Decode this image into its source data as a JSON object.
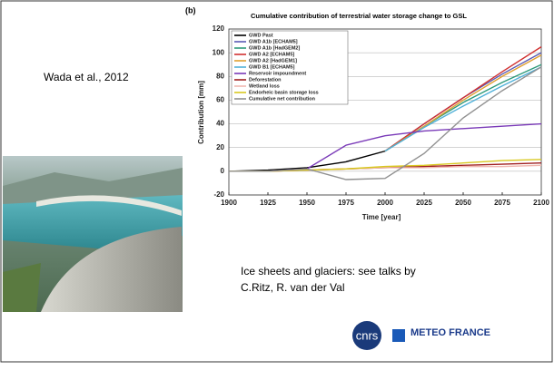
{
  "slide": {
    "citation": "Wada et al., 2012",
    "note_lines": [
      "Ice sheets and glaciers: see talks by",
      "C.Ritz, R. van der Val"
    ],
    "logos": [
      "cnrs",
      "METEO FRANCE"
    ]
  },
  "chart_data": {
    "type": "line",
    "panel_label": "(b)",
    "title": "Cumulative contribution of terrestrial water storage change to GSL",
    "x_label": "Time [year]",
    "y_label": "Contribution [mm]",
    "x": [
      1900,
      1925,
      1950,
      1975,
      2000,
      2025,
      2050,
      2075,
      2100
    ],
    "xlim": [
      1900,
      2100
    ],
    "xticks": [
      1900,
      1925,
      1950,
      1975,
      2000,
      2025,
      2050,
      2075,
      2100
    ],
    "ylim": [
      -20,
      120
    ],
    "yticks": [
      -20,
      0,
      20,
      40,
      60,
      80,
      100,
      120
    ],
    "grid": true,
    "legend": "top-left",
    "series": [
      {
        "name": "GWD Past",
        "color": "#000000",
        "values": [
          0,
          1,
          3,
          8,
          17,
          null,
          null,
          null,
          null
        ]
      },
      {
        "name": "GWD A1b [ECHAM5]",
        "color": "#5a5ab4",
        "values": [
          null,
          null,
          null,
          null,
          17,
          40,
          62,
          82,
          100
        ]
      },
      {
        "name": "GWD A1b [HadGEM2]",
        "color": "#2e9a7a",
        "values": [
          null,
          null,
          null,
          null,
          17,
          38,
          58,
          75,
          90
        ]
      },
      {
        "name": "GWD A2 [ECHAM5]",
        "color": "#d03030",
        "values": [
          null,
          null,
          null,
          null,
          17,
          40,
          62,
          84,
          105
        ]
      },
      {
        "name": "GWD A2 [HadGEM1]",
        "color": "#e0a030",
        "values": [
          null,
          null,
          null,
          null,
          17,
          38,
          60,
          80,
          98
        ]
      },
      {
        "name": "GWD B1 [ECHAM5]",
        "color": "#50b0d8",
        "values": [
          null,
          null,
          null,
          null,
          17,
          37,
          55,
          72,
          88
        ]
      },
      {
        "name": "Reservoir impoundment",
        "color": "#7a3ab8",
        "values": [
          0,
          0,
          2,
          22,
          30,
          34,
          36,
          38,
          40
        ]
      },
      {
        "name": "Deforestation",
        "color": "#a02020",
        "values": [
          0,
          0,
          1,
          2,
          3,
          4,
          5,
          6,
          7
        ]
      },
      {
        "name": "Wetland loss",
        "color": "#f0b8b0",
        "values": [
          0,
          0,
          1,
          2,
          3,
          3,
          4,
          4,
          5
        ]
      },
      {
        "name": "Endorheic basin storage loss",
        "color": "#d8c820",
        "values": [
          0,
          0,
          1,
          2,
          4,
          5,
          7,
          9,
          10
        ]
      },
      {
        "name": "Cumulative net contribution",
        "color": "#909090",
        "values": [
          0,
          0,
          2,
          -7,
          -6,
          15,
          45,
          68,
          88
        ]
      }
    ]
  }
}
